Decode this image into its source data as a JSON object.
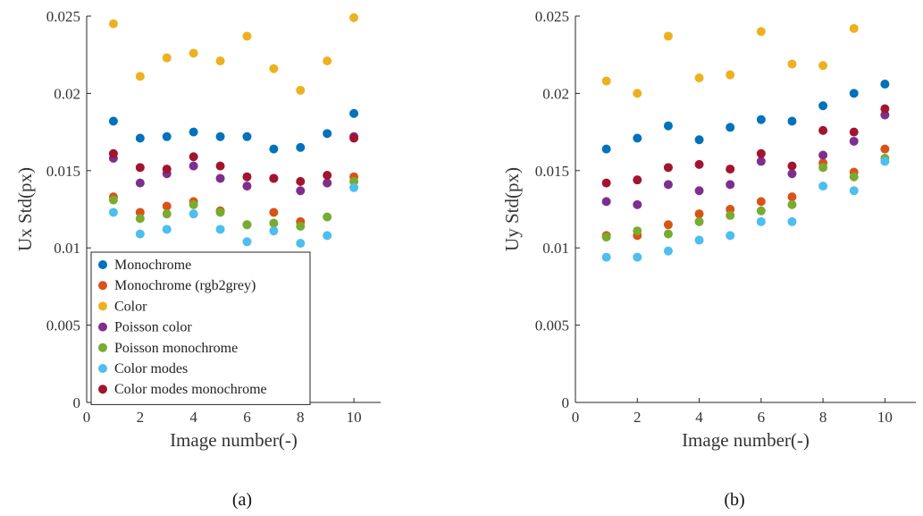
{
  "chart_data": [
    {
      "type": "scatter",
      "panel_label": "(a)",
      "xlabel": "Image number(-)",
      "ylabel": "Ux Std(px)",
      "xlim": [
        0,
        11
      ],
      "ylim": [
        0,
        0.025
      ],
      "xticks": [
        0,
        2,
        4,
        6,
        8,
        10
      ],
      "yticks": [
        0,
        0.005,
        0.01,
        0.015,
        0.02,
        0.025
      ],
      "ytick_labels": [
        "0",
        "0.005",
        "0.01",
        "0.015",
        "0.02",
        "0.025"
      ],
      "legend_position": "bottom-left",
      "x": [
        1,
        2,
        3,
        4,
        5,
        6,
        7,
        8,
        9,
        10
      ],
      "series": [
        {
          "name": "Monochrome",
          "color": "#0072BD",
          "values": [
            0.0182,
            0.0171,
            0.0172,
            0.0175,
            0.0172,
            0.0172,
            0.0164,
            0.0165,
            0.0174,
            0.0187
          ]
        },
        {
          "name": "Monochrome (rgb2grey)",
          "color": "#D95319",
          "values": [
            0.0133,
            0.0123,
            0.0127,
            0.013,
            0.0124,
            0.0115,
            0.0123,
            0.0117,
            0.0142,
            0.0146
          ]
        },
        {
          "name": "Color",
          "color": "#EDB120",
          "values": [
            0.0245,
            0.0211,
            0.0223,
            0.0226,
            0.0221,
            0.0237,
            0.0216,
            0.0202,
            0.0221,
            0.0249
          ]
        },
        {
          "name": "Poisson color",
          "color": "#7E2F8E",
          "values": [
            0.0158,
            0.0142,
            0.0148,
            0.0153,
            0.0145,
            0.014,
            0.0145,
            0.0137,
            0.0142,
            0.0172
          ]
        },
        {
          "name": "Poisson monochrome",
          "color": "#77AC30",
          "values": [
            0.0131,
            0.0119,
            0.0122,
            0.0128,
            0.0123,
            0.0115,
            0.0116,
            0.0114,
            0.012,
            0.0143
          ]
        },
        {
          "name": "Color modes",
          "color": "#4DBEEE",
          "values": [
            0.0123,
            0.0109,
            0.0112,
            0.0122,
            0.0112,
            0.0104,
            0.0111,
            0.0103,
            0.0108,
            0.0139
          ]
        },
        {
          "name": "Color modes monochrome",
          "color": "#A2142F",
          "values": [
            0.0161,
            0.0152,
            0.0151,
            0.0159,
            0.0153,
            0.0146,
            0.0145,
            0.0143,
            0.0147,
            0.0171
          ]
        }
      ]
    },
    {
      "type": "scatter",
      "panel_label": "(b)",
      "xlabel": "Image number(-)",
      "ylabel": "Uy Std(px)",
      "xlim": [
        0,
        11
      ],
      "ylim": [
        0,
        0.025
      ],
      "xticks": [
        0,
        2,
        4,
        6,
        8,
        10
      ],
      "yticks": [
        0,
        0.005,
        0.01,
        0.015,
        0.02,
        0.025
      ],
      "ytick_labels": [
        "0",
        "0.005",
        "0.01",
        "0.015",
        "0.02",
        "0.025"
      ],
      "x": [
        1,
        2,
        3,
        4,
        5,
        6,
        7,
        8,
        9,
        10
      ],
      "series": [
        {
          "name": "Monochrome",
          "color": "#0072BD",
          "values": [
            0.0164,
            0.0171,
            0.0179,
            0.017,
            0.0178,
            0.0183,
            0.0182,
            0.0192,
            0.02,
            0.0206
          ]
        },
        {
          "name": "Monochrome (rgb2grey)",
          "color": "#D95319",
          "values": [
            0.0108,
            0.0108,
            0.0115,
            0.0122,
            0.0125,
            0.013,
            0.0133,
            0.0155,
            0.0149,
            0.0164
          ]
        },
        {
          "name": "Color",
          "color": "#EDB120",
          "values": [
            0.0208,
            0.02,
            0.0237,
            0.021,
            0.0212,
            0.024,
            0.0219,
            0.0218,
            0.0242,
            null
          ]
        },
        {
          "name": "Poisson color",
          "color": "#7E2F8E",
          "values": [
            0.013,
            0.0128,
            0.0141,
            0.0137,
            0.0141,
            0.0156,
            0.0148,
            0.016,
            0.0169,
            0.0186
          ]
        },
        {
          "name": "Poisson monochrome",
          "color": "#77AC30",
          "values": [
            0.0107,
            0.0111,
            0.0109,
            0.0117,
            0.0121,
            0.0124,
            0.0128,
            0.0152,
            0.0146,
            0.0158
          ]
        },
        {
          "name": "Color modes",
          "color": "#4DBEEE",
          "values": [
            0.0094,
            0.0094,
            0.0098,
            0.0105,
            0.0108,
            0.0117,
            0.0117,
            0.014,
            0.0137,
            0.0156
          ]
        },
        {
          "name": "Color modes monochrome",
          "color": "#A2142F",
          "values": [
            0.0142,
            0.0144,
            0.0152,
            0.0154,
            0.0151,
            0.0161,
            0.0153,
            0.0176,
            0.0175,
            0.019
          ]
        }
      ]
    }
  ]
}
